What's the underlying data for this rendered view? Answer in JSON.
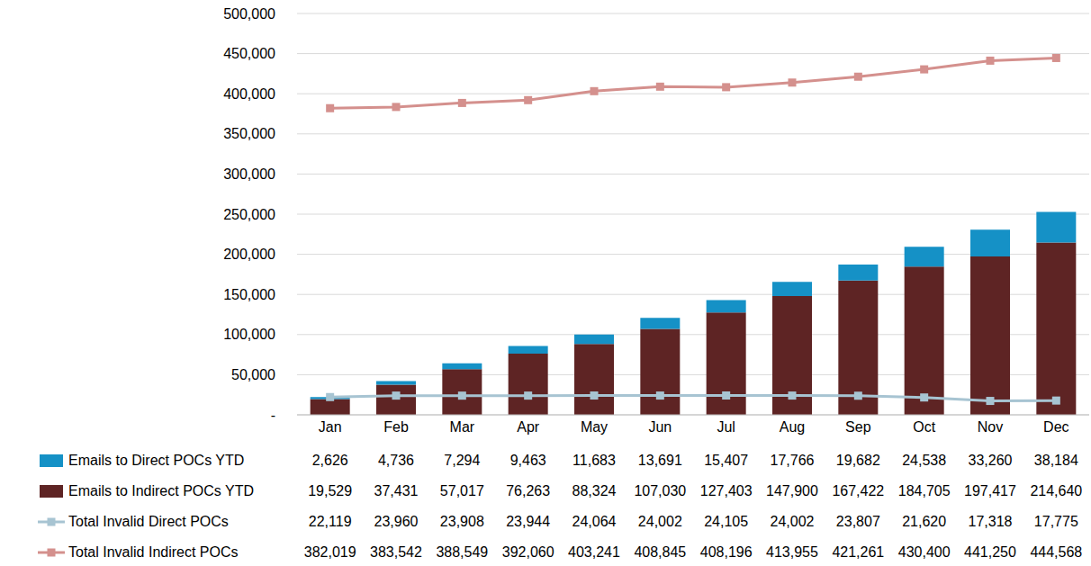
{
  "chart_data": {
    "type": "bar",
    "categories": [
      "Jan",
      "Feb",
      "Mar",
      "Apr",
      "May",
      "Jun",
      "Jul",
      "Aug",
      "Sep",
      "Oct",
      "Nov",
      "Dec"
    ],
    "series": [
      {
        "name": "Emails to Direct POCs YTD",
        "type": "bar",
        "color": "#1591c6",
        "values": [
          2626,
          4736,
          7294,
          9463,
          11683,
          13691,
          15407,
          17766,
          19682,
          24538,
          33260,
          38184
        ],
        "value_labels": [
          "2,626",
          "4,736",
          "7,294",
          "9,463",
          "11,683",
          "13,691",
          "15,407",
          "17,766",
          "19,682",
          "24,538",
          "33,260",
          "38,184"
        ]
      },
      {
        "name": "Emails to Indirect POCs YTD",
        "type": "bar",
        "color": "#5e2424",
        "values": [
          19529,
          37431,
          57017,
          76263,
          88324,
          107030,
          127403,
          147900,
          167422,
          184705,
          197417,
          214640
        ],
        "value_labels": [
          "19,529",
          "37,431",
          "57,017",
          "76,263",
          "88,324",
          "107,030",
          "127,403",
          "147,900",
          "167,422",
          "184,705",
          "197,417",
          "214,640"
        ]
      },
      {
        "name": "Total Invalid Direct POCs",
        "type": "line",
        "color": "#a7c4d2",
        "marker": "square",
        "values": [
          22119,
          23960,
          23908,
          23944,
          24064,
          24002,
          24105,
          24002,
          23807,
          21620,
          17318,
          17775
        ],
        "value_labels": [
          "22,119",
          "23,960",
          "23,908",
          "23,944",
          "24,064",
          "24,002",
          "24,105",
          "24,002",
          "23,807",
          "21,620",
          "17,318",
          "17,775"
        ]
      },
      {
        "name": "Total Invalid Indirect POCs",
        "type": "line",
        "color": "#d4908d",
        "marker": "square",
        "values": [
          382019,
          383542,
          388549,
          392060,
          403241,
          408845,
          408196,
          413955,
          421261,
          430400,
          441250,
          444568
        ],
        "value_labels": [
          "382,019",
          "383,542",
          "388,549",
          "392,060",
          "403,241",
          "408,845",
          "408,196",
          "413,955",
          "421,261",
          "430,400",
          "441,250",
          "444,568"
        ]
      }
    ],
    "stacked": true,
    "grid": true,
    "legend": "bottom",
    "ylim": [
      0,
      500000
    ],
    "yticks": [
      {
        "value": 0,
        "label": "-"
      },
      {
        "value": 50000,
        "label": "50,000"
      },
      {
        "value": 100000,
        "label": "100,000"
      },
      {
        "value": 150000,
        "label": "150,000"
      },
      {
        "value": 200000,
        "label": "200,000"
      },
      {
        "value": 250000,
        "label": "250,000"
      },
      {
        "value": 300000,
        "label": "300,000"
      },
      {
        "value": 350000,
        "label": "350,000"
      },
      {
        "value": 400000,
        "label": "400,000"
      },
      {
        "value": 450000,
        "label": "450,000"
      },
      {
        "value": 500000,
        "label": "500,000"
      }
    ]
  }
}
